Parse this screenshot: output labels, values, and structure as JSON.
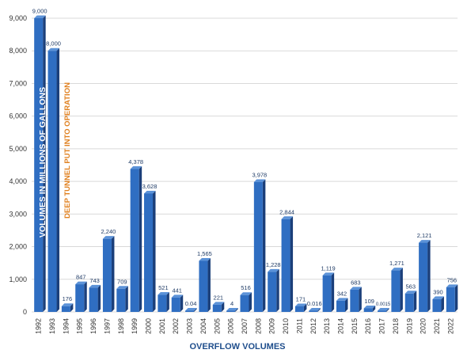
{
  "chart_data": {
    "type": "bar",
    "categories": [
      "1992",
      "1993",
      "1994",
      "1995",
      "1996",
      "1997",
      "1998",
      "1999",
      "2000",
      "2001",
      "2002",
      "2003",
      "2004",
      "2005",
      "2006",
      "2007",
      "2008",
      "2009",
      "2010",
      "2011",
      "2012",
      "2013",
      "2014",
      "2015",
      "2016",
      "2017",
      "2018",
      "2019",
      "2020",
      "2021",
      "2022"
    ],
    "values": [
      9000,
      8000,
      176,
      847,
      743,
      2240,
      709,
      4378,
      3628,
      521,
      441,
      0.04,
      1565,
      221,
      4,
      516,
      3978,
      1228,
      2844,
      171,
      0.016,
      1119,
      342,
      683,
      109,
      0.0015,
      1271,
      563,
      2121,
      390,
      756
    ],
    "value_labels": [
      "9,000",
      "8,000",
      "176",
      "847",
      "743",
      "2,240",
      "709",
      "4,378",
      "3,628",
      "521",
      "441",
      "0.04",
      "1,565",
      "221",
      "4",
      "516",
      "3,978",
      "1,228",
      "2,844",
      "171",
      "0.016",
      "1,119",
      "342",
      "683",
      "109",
      "0.0015",
      "1,271",
      "563",
      "2,121",
      "390",
      "756"
    ],
    "xlabel": "OVERFLOW VOLUMES",
    "ylabel": "VOLUMES IN MILLIONS OF GALLONS",
    "annotation": "DEEP TUNNEL PUT INTO OPERATION",
    "ylim": [
      0,
      9000
    ],
    "yticks": [
      "0",
      "1,000",
      "2,000",
      "3,000",
      "4,000",
      "5,000",
      "6,000",
      "7,000",
      "8,000",
      "9,000"
    ],
    "gridlines": true,
    "colors": {
      "bar_front": "#2f6ec2",
      "bar_side": "#1b3f7a",
      "bar_top": "#5b92d8",
      "grid": "#d9d9d9",
      "xlabel": "#1f4e8c",
      "annotation": "#e0801f"
    }
  }
}
